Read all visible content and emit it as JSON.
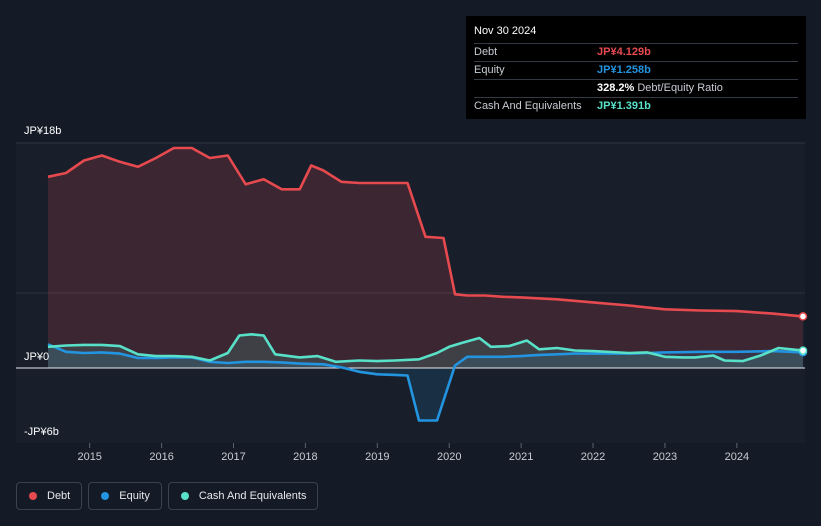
{
  "chart_data": {
    "type": "area",
    "y_ticks": [
      {
        "value": 18,
        "label": "JP¥18b"
      },
      {
        "value": 0,
        "label": "JP¥0"
      },
      {
        "value": -6,
        "label": "-JP¥6b"
      }
    ],
    "ylim": [
      -6,
      18
    ],
    "x_ticks": [
      "2015",
      "2016",
      "2017",
      "2018",
      "2019",
      "2020",
      "2021",
      "2022",
      "2023",
      "2024"
    ],
    "xlim": [
      2014.42,
      2024.92
    ],
    "colors": {
      "Debt": "#e64a4f",
      "Equity": "#2394df",
      "Cash And Equivalents": "#58e0c8"
    },
    "series": [
      {
        "name": "Debt",
        "points": [
          [
            2014.42,
            15.3
          ],
          [
            2014.67,
            15.6
          ],
          [
            2014.92,
            16.6
          ],
          [
            2015.17,
            17.0
          ],
          [
            2015.42,
            16.5
          ],
          [
            2015.67,
            16.1
          ],
          [
            2015.92,
            16.8
          ],
          [
            2016.17,
            17.6
          ],
          [
            2016.42,
            17.6
          ],
          [
            2016.67,
            16.8
          ],
          [
            2016.92,
            17.0
          ],
          [
            2017.17,
            14.7
          ],
          [
            2017.42,
            15.1
          ],
          [
            2017.67,
            14.3
          ],
          [
            2017.92,
            14.3
          ],
          [
            2018.08,
            16.2
          ],
          [
            2018.25,
            15.8
          ],
          [
            2018.5,
            14.9
          ],
          [
            2018.75,
            14.8
          ],
          [
            2019.0,
            14.8
          ],
          [
            2019.25,
            14.8
          ],
          [
            2019.42,
            14.8
          ],
          [
            2019.67,
            10.5
          ],
          [
            2019.92,
            10.4
          ],
          [
            2020.08,
            5.9
          ],
          [
            2020.25,
            5.8
          ],
          [
            2020.5,
            5.8
          ],
          [
            2020.75,
            5.7
          ],
          [
            2021.0,
            5.65
          ],
          [
            2021.5,
            5.5
          ],
          [
            2022.0,
            5.25
          ],
          [
            2022.5,
            5.0
          ],
          [
            2023.0,
            4.7
          ],
          [
            2023.5,
            4.6
          ],
          [
            2024.0,
            4.55
          ],
          [
            2024.5,
            4.35
          ],
          [
            2024.92,
            4.129
          ]
        ]
      },
      {
        "name": "Equity",
        "points": [
          [
            2014.42,
            1.9
          ],
          [
            2014.67,
            1.3
          ],
          [
            2014.92,
            1.2
          ],
          [
            2015.17,
            1.25
          ],
          [
            2015.42,
            1.15
          ],
          [
            2015.67,
            0.8
          ],
          [
            2015.92,
            0.8
          ],
          [
            2016.17,
            0.85
          ],
          [
            2016.42,
            0.85
          ],
          [
            2016.67,
            0.5
          ],
          [
            2016.92,
            0.4
          ],
          [
            2017.17,
            0.5
          ],
          [
            2017.42,
            0.5
          ],
          [
            2017.67,
            0.45
          ],
          [
            2017.92,
            0.35
          ],
          [
            2018.25,
            0.3
          ],
          [
            2018.5,
            0.05
          ],
          [
            2018.75,
            -0.3
          ],
          [
            2019.0,
            -0.5
          ],
          [
            2019.25,
            -0.55
          ],
          [
            2019.42,
            -0.6
          ],
          [
            2019.58,
            -4.2
          ],
          [
            2019.83,
            -4.2
          ],
          [
            2020.08,
            0.2
          ],
          [
            2020.25,
            0.9
          ],
          [
            2020.5,
            0.9
          ],
          [
            2020.75,
            0.9
          ],
          [
            2021.0,
            0.95
          ],
          [
            2021.25,
            1.05
          ],
          [
            2021.5,
            1.1
          ],
          [
            2021.75,
            1.15
          ],
          [
            2022.0,
            1.15
          ],
          [
            2022.5,
            1.15
          ],
          [
            2022.75,
            1.2
          ],
          [
            2023.0,
            1.25
          ],
          [
            2023.5,
            1.3
          ],
          [
            2024.0,
            1.3
          ],
          [
            2024.5,
            1.35
          ],
          [
            2024.92,
            1.258
          ]
        ]
      },
      {
        "name": "Cash And Equivalents",
        "points": [
          [
            2014.42,
            1.7
          ],
          [
            2014.67,
            1.8
          ],
          [
            2014.92,
            1.85
          ],
          [
            2015.17,
            1.85
          ],
          [
            2015.42,
            1.75
          ],
          [
            2015.67,
            1.1
          ],
          [
            2015.92,
            0.95
          ],
          [
            2016.17,
            0.95
          ],
          [
            2016.42,
            0.9
          ],
          [
            2016.67,
            0.6
          ],
          [
            2016.92,
            1.2
          ],
          [
            2017.08,
            2.6
          ],
          [
            2017.25,
            2.7
          ],
          [
            2017.42,
            2.6
          ],
          [
            2017.58,
            1.1
          ],
          [
            2017.92,
            0.85
          ],
          [
            2018.17,
            0.95
          ],
          [
            2018.42,
            0.5
          ],
          [
            2018.75,
            0.6
          ],
          [
            2019.0,
            0.55
          ],
          [
            2019.25,
            0.6
          ],
          [
            2019.58,
            0.7
          ],
          [
            2019.83,
            1.2
          ],
          [
            2020.0,
            1.7
          ],
          [
            2020.17,
            2.0
          ],
          [
            2020.42,
            2.4
          ],
          [
            2020.58,
            1.7
          ],
          [
            2020.83,
            1.75
          ],
          [
            2021.08,
            2.2
          ],
          [
            2021.25,
            1.5
          ],
          [
            2021.5,
            1.6
          ],
          [
            2021.75,
            1.4
          ],
          [
            2022.0,
            1.35
          ],
          [
            2022.5,
            1.2
          ],
          [
            2022.75,
            1.25
          ],
          [
            2023.0,
            0.9
          ],
          [
            2023.25,
            0.85
          ],
          [
            2023.42,
            0.85
          ],
          [
            2023.67,
            1.0
          ],
          [
            2023.83,
            0.6
          ],
          [
            2024.08,
            0.55
          ],
          [
            2024.33,
            1.0
          ],
          [
            2024.58,
            1.6
          ],
          [
            2024.92,
            1.391
          ]
        ]
      }
    ]
  },
  "tooltip": {
    "date": "Nov 30 2024",
    "rows": [
      {
        "label": "Debt",
        "value": "JP¥4.129b",
        "color": "#e64a4f",
        "extra": ""
      },
      {
        "label": "Equity",
        "value": "JP¥1.258b",
        "color": "#2394df",
        "extra": ""
      },
      {
        "label": "",
        "value": "328.2%",
        "color": "#ffffff",
        "extra": "Debt/Equity Ratio"
      },
      {
        "label": "Cash And Equivalents",
        "value": "JP¥1.391b",
        "color": "#58e0c8",
        "extra": ""
      }
    ]
  },
  "legend": [
    {
      "label": "Debt",
      "color": "#e64a4f"
    },
    {
      "label": "Equity",
      "color": "#2394df"
    },
    {
      "label": "Cash And Equivalents",
      "color": "#58e0c8"
    }
  ]
}
